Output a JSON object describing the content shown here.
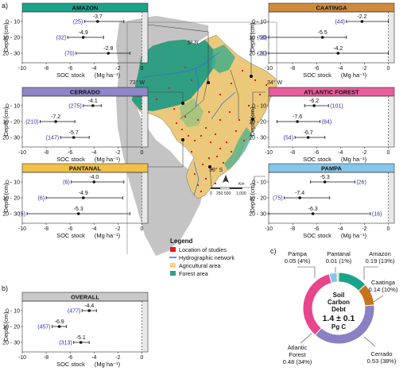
{
  "figure": {
    "panel_labels": {
      "a": "a)",
      "b": "b)",
      "c": "c)"
    },
    "common": {
      "xlabel": "SOC stock",
      "xunit": "(Mg ha⁻¹)",
      "ylabel": "Depth (cm)",
      "depth_categories": [
        "0 - 10",
        "10 - 20",
        "20 - 30"
      ],
      "xticks": [
        -10,
        -8,
        -6,
        -4,
        -2,
        0
      ]
    },
    "legend": {
      "title": "Legend",
      "items": [
        {
          "label": "Location of studies",
          "color": "#e31a1c",
          "kind": "square"
        },
        {
          "label": "Hydrographic network",
          "color": "#2b6cd6",
          "kind": "line"
        },
        {
          "label": "Agricultural area",
          "color": "#f6d47a",
          "kind": "square"
        },
        {
          "label": "Forest area",
          "color": "#2f9e82",
          "kind": "square"
        }
      ]
    },
    "map_labels": {
      "lat_north": "5° N",
      "lat_south": "33° S",
      "lon_west": "73° W",
      "lon_east": "34° W",
      "north_arrow": "N",
      "scale_values": [
        "0",
        "250",
        "500",
        "1,000"
      ],
      "scale_unit": "Km"
    }
  },
  "chart_data": [
    {
      "type": "forest",
      "panel": "a",
      "title": "AMAZON",
      "header_color": "#1aa38a",
      "categories": [
        "0 - 10",
        "10 - 20",
        "20 - 30"
      ],
      "mean": [
        -3.7,
        -4.9,
        -2.8
      ],
      "ci_low": [
        -4.8,
        -6.2,
        -5.5
      ],
      "ci_high": [
        -1.5,
        -3.2,
        -1.0
      ],
      "n": [
        25,
        32,
        70
      ],
      "xlim": [
        -10,
        0.5
      ],
      "shaded_region": "x > 0"
    },
    {
      "type": "forest",
      "panel": "a",
      "title": "CAATINGA",
      "header_color": "#d08a3c",
      "categories": [
        "0 - 10",
        "10 - 20",
        "20 - 30"
      ],
      "mean": [
        -2.2,
        -5.5,
        -4.2
      ],
      "ci_low": [
        -3.5,
        -10.0,
        -10.0
      ],
      "ci_high": [
        0.0,
        -3.5,
        0.0
      ],
      "n": [
        44,
        50,
        21
      ],
      "xlim": [
        -10,
        0.5
      ],
      "shaded_region": "x > 0"
    },
    {
      "type": "forest",
      "panel": "a",
      "title": "CERRADO",
      "header_color": "#8e86c7",
      "categories": [
        "0 - 10",
        "10 - 20",
        "20 - 30"
      ],
      "mean": [
        -4.1,
        -7.2,
        -5.7
      ],
      "ci_low": [
        -4.9,
        -8.5,
        -6.8
      ],
      "ci_high": [
        -3.4,
        -5.6,
        -4.4
      ],
      "n": [
        275,
        210,
        147
      ],
      "xlim": [
        -10,
        0.5
      ],
      "shaded_region": "x > 0"
    },
    {
      "type": "forest",
      "panel": "a",
      "title": "ATLANTIC FOREST",
      "header_color": "#e85d9b",
      "categories": [
        "0 - 10",
        "10 - 20",
        "20 - 30"
      ],
      "mean": [
        -6.2,
        -7.6,
        -6.7
      ],
      "ci_low": [
        -7.0,
        -9.3,
        -7.8
      ],
      "ci_high": [
        -5.0,
        -5.7,
        -5.3
      ],
      "n": [
        101,
        84,
        54
      ],
      "xlim": [
        -10,
        0.5
      ],
      "shaded_region": "x > 0"
    },
    {
      "type": "forest",
      "panel": "a",
      "title": "PANTANAL",
      "header_color": "#f1c048",
      "categories": [
        "0 - 10",
        "10 - 20",
        "20 - 30"
      ],
      "mean": [
        -4.0,
        -4.9,
        -5.3
      ],
      "ci_low": [
        -5.9,
        -8.0,
        -9.6
      ],
      "ci_high": [
        -1.5,
        -1.6,
        -1.0
      ],
      "n": [
        6,
        6,
        5
      ],
      "xlim": [
        -10,
        0.5
      ],
      "shaded_region": "x > 0"
    },
    {
      "type": "forest",
      "panel": "a",
      "title": "PAMPA",
      "header_color": "#86c6ea",
      "categories": [
        "0 - 10",
        "10 - 20",
        "20 - 30"
      ],
      "mean": [
        -5.3,
        -7.4,
        -6.3
      ],
      "ci_low": [
        -6.5,
        -8.7,
        -10.0
      ],
      "ci_high": [
        -2.8,
        -4.9,
        -1.5
      ],
      "n": [
        26,
        75,
        16
      ],
      "xlim": [
        -10,
        0.5
      ],
      "shaded_region": "x > 0"
    },
    {
      "type": "forest",
      "panel": "b",
      "title": "OVERALL",
      "header_color": "#c9c9c9",
      "categories": [
        "0 - 10",
        "10 - 20",
        "20 - 30"
      ],
      "mean": [
        -4.4,
        -6.9,
        -5.1
      ],
      "ci_low": [
        -5.0,
        -7.5,
        -5.7
      ],
      "ci_high": [
        -3.8,
        -6.3,
        -4.4
      ],
      "n": [
        477,
        457,
        313
      ],
      "xlim": [
        -10,
        0.5
      ],
      "shaded_region": "x > 0"
    },
    {
      "type": "pie",
      "panel": "c",
      "donut": true,
      "center_lines": [
        "Soil",
        "Carbon",
        "Debt"
      ],
      "center_value": "1.4 ± 0.1",
      "center_unit": "Pg C",
      "slices": [
        {
          "name": "Amazon",
          "value": 0.19,
          "pct": "13%",
          "label": "0.19 (13%)",
          "color": "#1aa38a"
        },
        {
          "name": "Caatinga",
          "value": 0.14,
          "pct": "10%",
          "label": "0.14 (10%)",
          "color": "#c8731e"
        },
        {
          "name": "Cerrado",
          "value": 0.53,
          "pct": "38%",
          "label": "0.53 (38%)",
          "color": "#8a80c4"
        },
        {
          "name": "Atlantic Forest",
          "value": 0.48,
          "pct": "34%",
          "label": "0.48 (34%)",
          "color": "#e8468c"
        },
        {
          "name": "Pampa",
          "value": 0.05,
          "pct": "4%",
          "label": "0.05 (4%)",
          "color": "#86c6ea"
        },
        {
          "name": "Pantanal",
          "value": 0.01,
          "pct": "1%",
          "label": "0.01 (1%)",
          "color": "#f1c048"
        }
      ]
    }
  ]
}
